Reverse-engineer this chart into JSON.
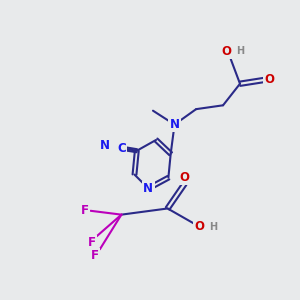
{
  "bg_color": "#e8eaeb",
  "bond_color": "#2a2a88",
  "bond_width": 1.5,
  "atom_colors": {
    "N": "#1a1aee",
    "O": "#cc0000",
    "F": "#bb00bb",
    "C_label": "#1a1aee",
    "H": "#888888"
  },
  "font_size_atom": 8.5,
  "font_size_small": 7.0
}
